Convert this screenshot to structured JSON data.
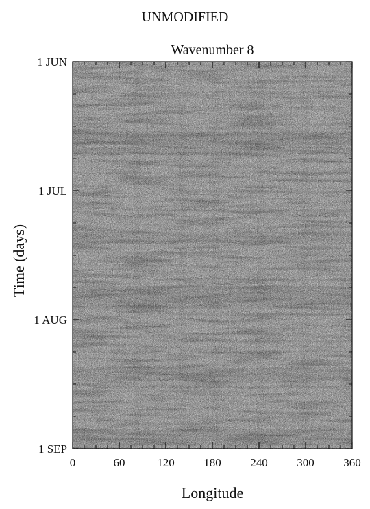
{
  "chart_data": {
    "type": "heatmap",
    "suptitle": "UNMODIFIED",
    "title": "Wavenumber 8",
    "xlabel": "Longitude",
    "ylabel": "Time (days)",
    "xlim": [
      0,
      360
    ],
    "x_ticks": [
      0,
      60,
      120,
      180,
      240,
      300,
      360
    ],
    "y_ticks": [
      {
        "label": "1 JUN",
        "value": "1 JUN"
      },
      {
        "label": "1 JUL",
        "value": "1 JUL"
      },
      {
        "label": "1 AUG",
        "value": "1 AUG"
      },
      {
        "label": "1 SEP",
        "value": "1 SEP"
      }
    ],
    "ylim": [
      "1 JUN",
      "1 SEP"
    ],
    "colormap": "grayscale stipple",
    "grid": false
  },
  "colors": {
    "background": "#ffffff",
    "field_base": "#a9a9a9",
    "axis": "#111111"
  }
}
